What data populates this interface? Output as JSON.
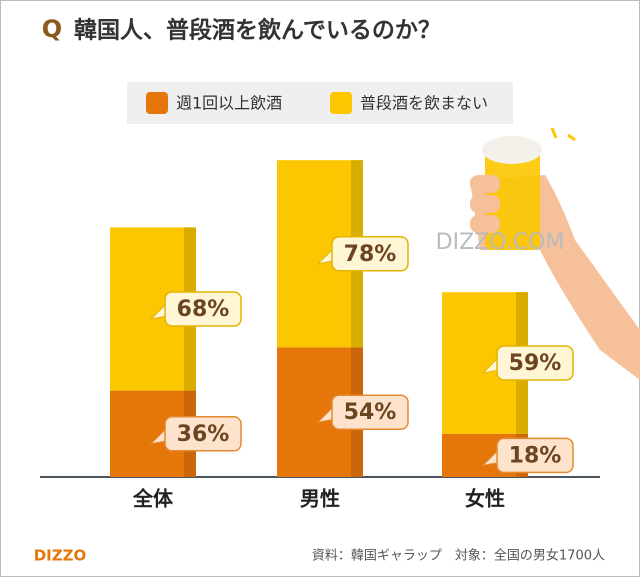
{
  "chart_data": {
    "type": "stacked_bar",
    "q_mark": "Q",
    "title": "韓国人、普段酒を飲んでいるのか？",
    "categories": [
      "全体",
      "男性",
      "女性"
    ],
    "series": [
      {
        "name": "週1回以上飲酒",
        "color": "#e5760a",
        "values": [
          36,
          54,
          18
        ],
        "value_labels": [
          "36%",
          "54%",
          "18%"
        ]
      },
      {
        "name": "普段酒を飲まない",
        "color": "#fcc600",
        "values": [
          68,
          78,
          59
        ],
        "value_labels": [
          "68%",
          "78%",
          "59%"
        ]
      }
    ],
    "ylim": [
      0,
      140
    ],
    "watermark": "DIZZO.COM",
    "logo": "DIZZO",
    "source": "資料：韓国ギャラップ　対象：全国の男女1700人"
  }
}
